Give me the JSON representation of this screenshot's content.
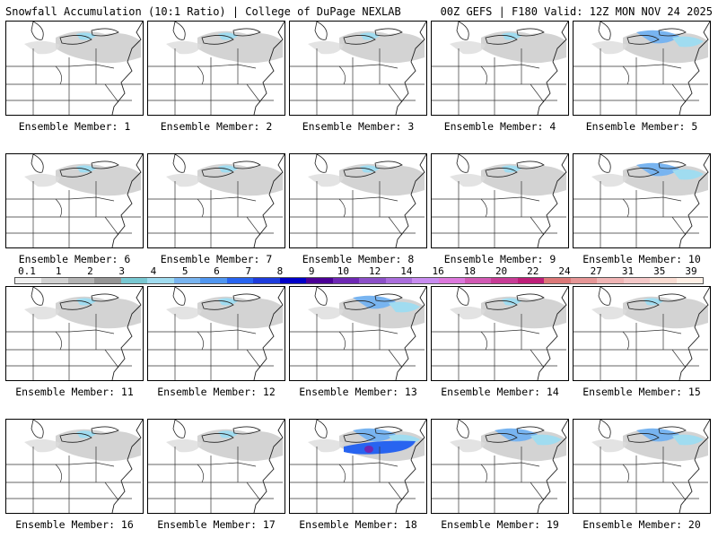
{
  "header": {
    "left_title": "Snowfall Accumulation (10:1 Ratio) | College of DuPage NEXLAB",
    "right_title": "00Z GEFS | F180 Valid: 12Z MON NOV 24 2025"
  },
  "colorbar": {
    "tick_labels": [
      "0.1",
      "1",
      "2",
      "3",
      "4",
      "5",
      "6",
      "7",
      "8",
      "9",
      "10",
      "12",
      "14",
      "16",
      "18",
      "20",
      "22",
      "24",
      "27",
      "31",
      "35",
      "39"
    ],
    "colors": [
      "#f0f0f0",
      "#d2d2d2",
      "#b4b4b4",
      "#969696",
      "#78c8d2",
      "#a0dcf0",
      "#78b4f0",
      "#5096f0",
      "#2864f0",
      "#1e3cdc",
      "#0000c8",
      "#4b0096",
      "#6e28b4",
      "#8c50c8",
      "#aa6edc",
      "#c88cf0",
      "#dc78dc",
      "#d25ab4",
      "#c83c96",
      "#be1e78",
      "#dc7878",
      "#e69696",
      "#f0b4b4",
      "#f5c8c8",
      "#fadcd2",
      "#fff0e6"
    ]
  },
  "panels": [
    {
      "label": "Ensemble Member: 1",
      "snow": "light"
    },
    {
      "label": "Ensemble Member: 2",
      "snow": "light"
    },
    {
      "label": "Ensemble Member: 3",
      "snow": "light"
    },
    {
      "label": "Ensemble Member: 4",
      "snow": "light"
    },
    {
      "label": "Ensemble Member: 5",
      "snow": "moderate"
    },
    {
      "label": "Ensemble Member: 6",
      "snow": "light"
    },
    {
      "label": "Ensemble Member: 7",
      "snow": "light"
    },
    {
      "label": "Ensemble Member: 8",
      "snow": "light"
    },
    {
      "label": "Ensemble Member: 9",
      "snow": "light"
    },
    {
      "label": "Ensemble Member: 10",
      "snow": "moderate"
    },
    {
      "label": "Ensemble Member: 11",
      "snow": "light"
    },
    {
      "label": "Ensemble Member: 12",
      "snow": "light"
    },
    {
      "label": "Ensemble Member: 13",
      "snow": "moderate"
    },
    {
      "label": "Ensemble Member: 14",
      "snow": "light"
    },
    {
      "label": "Ensemble Member: 15",
      "snow": "light"
    },
    {
      "label": "Ensemble Member: 16",
      "snow": "light"
    },
    {
      "label": "Ensemble Member: 17",
      "snow": "light"
    },
    {
      "label": "Ensemble Member: 18",
      "snow": "heavy"
    },
    {
      "label": "Ensemble Member: 19",
      "snow": "moderate"
    },
    {
      "label": "Ensemble Member: 20",
      "snow": "moderate"
    }
  ]
}
